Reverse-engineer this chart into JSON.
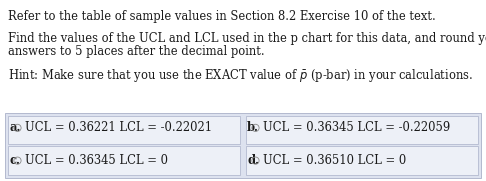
{
  "line1": "Refer to the table of sample values in Section 8.2 Exercise 10 of the text.",
  "line2": "Find the values of the UCL and LCL used in the p chart for this data, and round your",
  "line3": "answers to 5 places after the decimal point.",
  "hint_prefix": "Hint: Make sure that you use the EXACT value of ",
  "hint_suffix": " (p-bar) in your calculations.",
  "options": [
    {
      "label": "a.",
      "text": "UCL = 0.36221 LCL = -0.22021"
    },
    {
      "label": "b.",
      "text": "UCL = 0.36345 LCL = -0.22059"
    },
    {
      "label": "c.",
      "text": "UCL = 0.36345 LCL = 0"
    },
    {
      "label": "d.",
      "text": "UCL = 0.36510 LCL = 0"
    }
  ],
  "bg_color": "#ffffff",
  "table_bg": "#dde2ef",
  "cell_bg": "#edf0f7",
  "table_border": "#aab0c8",
  "text_color": "#1a1a1a",
  "font_size": 8.3,
  "label_font_size": 8.3,
  "figw": 4.86,
  "figh": 1.81
}
